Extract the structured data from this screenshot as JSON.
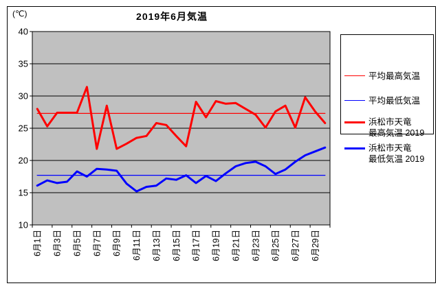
{
  "title": "2019年6月気温",
  "y_axis": {
    "unit": "(℃)",
    "ticks": [
      40,
      35,
      30,
      25,
      20,
      15,
      10
    ],
    "min": 10,
    "max": 40
  },
  "x_axis": {
    "tick_days": [
      1,
      3,
      5,
      7,
      9,
      11,
      13,
      15,
      17,
      19,
      21,
      23,
      25,
      27,
      29
    ],
    "tick_labels": [
      "6月1日",
      "6月3日",
      "6月5日",
      "6月7日",
      "6月9日",
      "6月11日",
      "6月13日",
      "6月15日",
      "6月17日",
      "6月19日",
      "6月21日",
      "6月23日",
      "6月25日",
      "6月27日",
      "6月29日"
    ]
  },
  "legend": {
    "items": [
      {
        "id": "avg_high",
        "label_lines": [
          "平均最高気温"
        ],
        "color": "#FF0000",
        "thick": false
      },
      {
        "id": "avg_low",
        "label_lines": [
          "平均最低気温"
        ],
        "color": "#0000FF",
        "thick": false
      },
      {
        "id": "high_2019",
        "label_lines": [
          "浜松市天竜",
          "最高気温 2019"
        ],
        "color": "#FF0000",
        "thick": true
      },
      {
        "id": "low_2019",
        "label_lines": [
          "浜松市天竜",
          "最低気温 2019"
        ],
        "color": "#0000FF",
        "thick": true
      }
    ]
  },
  "colors": {
    "plot_bg": "#C0C0C0",
    "axis": "#000000",
    "red": "#FF0000",
    "blue": "#0000FF"
  },
  "chart_data": {
    "type": "line",
    "title": "2019年6月気温",
    "ylabel": "(℃)",
    "ylim": [
      10,
      40
    ],
    "grid": true,
    "grid_step": 5,
    "legend_position": "right",
    "x_days": [
      1,
      2,
      3,
      4,
      5,
      6,
      7,
      8,
      9,
      10,
      11,
      12,
      13,
      14,
      15,
      16,
      17,
      18,
      19,
      20,
      21,
      22,
      23,
      24,
      25,
      26,
      27,
      28,
      29,
      30
    ],
    "series": [
      {
        "id": "avg_high",
        "name": "平均最高気温",
        "color": "#FF0000",
        "stroke_width": 1.3,
        "constant": 27.3
      },
      {
        "id": "avg_low",
        "name": "平均最低気温",
        "color": "#0000FF",
        "stroke_width": 1.3,
        "constant": 17.7
      },
      {
        "id": "high_2019",
        "name": "浜松市天竜 最高気温 2019",
        "color": "#FF0000",
        "stroke_width": 3,
        "values": [
          28.0,
          25.3,
          27.4,
          27.4,
          27.4,
          31.4,
          21.8,
          28.5,
          21.8,
          22.6,
          23.5,
          23.8,
          25.8,
          25.5,
          23.8,
          22.2,
          29.1,
          26.7,
          29.2,
          28.8,
          28.9,
          28.0,
          27.1,
          25.1,
          27.6,
          28.5,
          25.1,
          29.8,
          27.6,
          25.8
        ]
      },
      {
        "id": "low_2019",
        "name": "浜松市天竜 最低気温 2019",
        "color": "#0000FF",
        "stroke_width": 3,
        "values": [
          16.1,
          16.9,
          16.5,
          16.7,
          18.3,
          17.5,
          18.7,
          18.6,
          18.4,
          16.4,
          15.2,
          15.9,
          16.1,
          17.2,
          17.0,
          17.7,
          16.5,
          17.6,
          16.8,
          18.0,
          19.1,
          19.6,
          19.8,
          19.1,
          17.9,
          18.6,
          19.8,
          20.8,
          21.4,
          22.0
        ]
      }
    ]
  }
}
